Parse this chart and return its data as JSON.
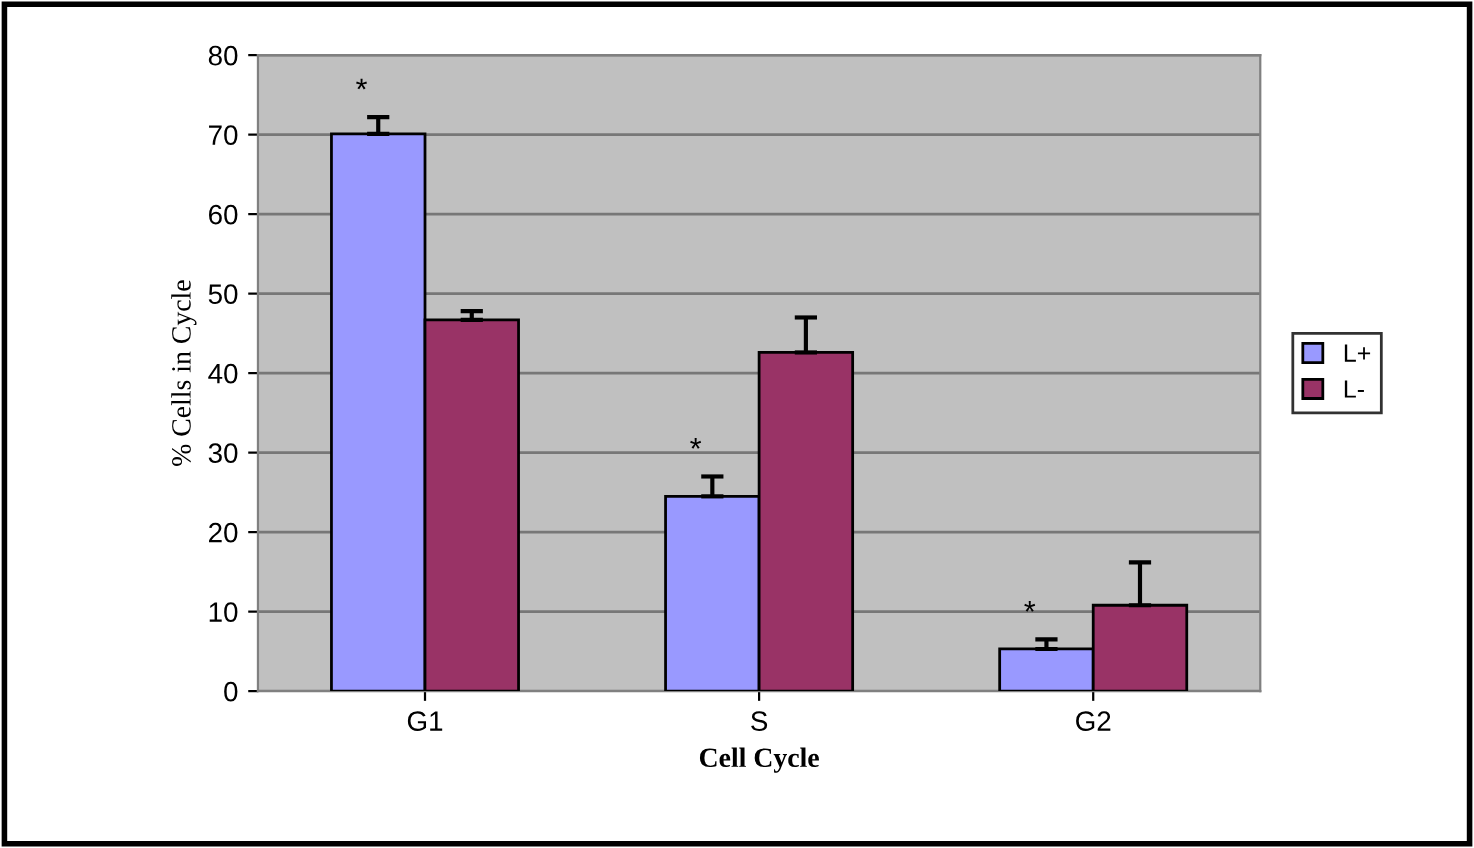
{
  "chart_data": {
    "type": "bar",
    "xlabel": "Cell Cycle",
    "ylabel": "% Cells in Cycle",
    "categories": [
      "G1",
      "S",
      "G2"
    ],
    "series": [
      {
        "name": "L+",
        "color": "#9999ff",
        "values": [
          70.1,
          24.5,
          5.3
        ],
        "errors": [
          [
            70.1,
            72.2
          ],
          [
            24.5,
            27.0
          ],
          [
            5.3,
            6.5
          ]
        ]
      },
      {
        "name": "L-",
        "color": "#993366",
        "values": [
          46.7,
          42.6,
          10.8
        ],
        "errors": [
          [
            46.7,
            47.8
          ],
          [
            42.6,
            47.0
          ],
          [
            10.8,
            16.2
          ]
        ]
      }
    ],
    "annotations": [
      "*",
      "*",
      "*"
    ],
    "ylim": [
      0,
      80
    ],
    "yticks": [
      0,
      10,
      20,
      30,
      40,
      50,
      60,
      70,
      80
    ],
    "grid": "y",
    "legend": "right"
  }
}
